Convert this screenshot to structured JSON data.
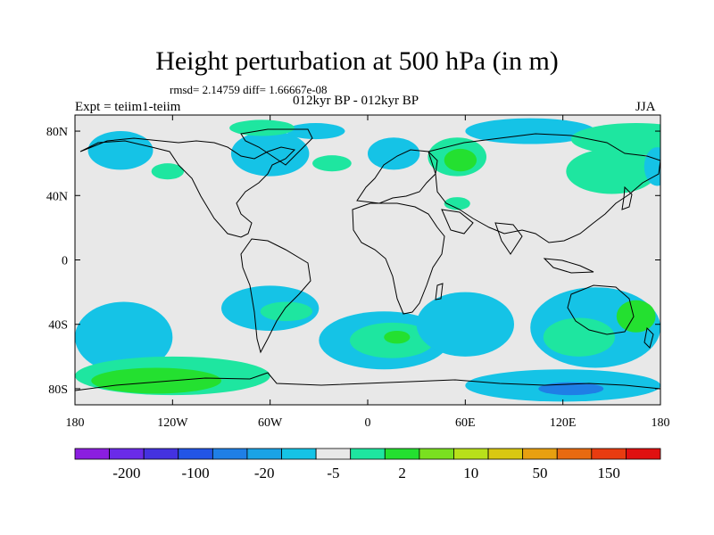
{
  "title": "Height perturbation at 500 hPa (in m)",
  "stats_line": "rmsd= 2.14759 diff= 1.66667e-08",
  "experiment_label": "Expt = teiim1-teiim",
  "period_label": "012kyr BP - 012kyr BP",
  "season_label": "JJA",
  "map": {
    "projection": "cylindrical-equidistant",
    "lon_range": [
      -180,
      180
    ],
    "lat_range": [
      -90,
      90
    ],
    "background_color": "#e8e8e8",
    "x_ticks": [
      {
        "lon": -180,
        "label": "180"
      },
      {
        "lon": -120,
        "label": "120W"
      },
      {
        "lon": -60,
        "label": "60W"
      },
      {
        "lon": 0,
        "label": "0"
      },
      {
        "lon": 60,
        "label": "60E"
      },
      {
        "lon": 120,
        "label": "120E"
      },
      {
        "lon": 180,
        "label": "180"
      }
    ],
    "y_ticks": [
      {
        "lat": 80,
        "label": "80N"
      },
      {
        "lat": 40,
        "label": "40N"
      },
      {
        "lat": 0,
        "label": "0"
      },
      {
        "lat": -40,
        "label": "40S"
      },
      {
        "lat": -80,
        "label": "80S"
      }
    ]
  },
  "colorbar": {
    "colors": [
      "#8b1ee0",
      "#6a2be8",
      "#4432e0",
      "#2255e6",
      "#1f7fe6",
      "#1aa3e6",
      "#15c3e6",
      "#e8e8e8",
      "#1ee6a0",
      "#24e030",
      "#7ae020",
      "#b8e01a",
      "#d9c812",
      "#e8a010",
      "#e86a10",
      "#e83c10",
      "#e01010"
    ],
    "labels": [
      {
        "after_box": 1,
        "text": "-200"
      },
      {
        "after_box": 3,
        "text": "-100"
      },
      {
        "after_box": 5,
        "text": "-20"
      },
      {
        "after_box": 7,
        "text": "-5"
      },
      {
        "after_box": 9,
        "text": "2"
      },
      {
        "after_box": 11,
        "text": "10"
      },
      {
        "after_box": 13,
        "text": "50"
      },
      {
        "after_box": 15,
        "text": "150"
      }
    ]
  },
  "anomaly_regions": [
    {
      "sign": "negative",
      "color": "#15c3e6",
      "center": [
        -152,
        68
      ],
      "radius": [
        20,
        12
      ]
    },
    {
      "sign": "negative",
      "color": "#15c3e6",
      "center": [
        -60,
        66
      ],
      "radius": [
        24,
        14
      ]
    },
    {
      "sign": "negative",
      "color": "#15c3e6",
      "center": [
        -32,
        80
      ],
      "radius": [
        18,
        5
      ]
    },
    {
      "sign": "positive",
      "color": "#1ee6a0",
      "center": [
        -65,
        82
      ],
      "radius": [
        20,
        5
      ]
    },
    {
      "sign": "positive",
      "color": "#1ee6a0",
      "center": [
        -123,
        55
      ],
      "radius": [
        10,
        5
      ]
    },
    {
      "sign": "positive",
      "color": "#1ee6a0",
      "center": [
        -22,
        60
      ],
      "radius": [
        12,
        5
      ]
    },
    {
      "sign": "negative",
      "color": "#15c3e6",
      "center": [
        16,
        66
      ],
      "radius": [
        16,
        10
      ]
    },
    {
      "sign": "positive",
      "color": "#1ee6a0",
      "center": [
        55,
        64
      ],
      "radius": [
        18,
        12
      ]
    },
    {
      "sign": "positive",
      "color": "#24e030",
      "center": [
        57,
        62
      ],
      "radius": [
        10,
        7
      ]
    },
    {
      "sign": "negative",
      "color": "#15c3e6",
      "center": [
        100,
        80
      ],
      "radius": [
        40,
        8
      ]
    },
    {
      "sign": "positive",
      "color": "#1ee6a0",
      "center": [
        165,
        75
      ],
      "radius": [
        40,
        10
      ]
    },
    {
      "sign": "positive",
      "color": "#1ee6a0",
      "center": [
        150,
        55
      ],
      "radius": [
        28,
        14
      ]
    },
    {
      "sign": "negative",
      "color": "#15c3e6",
      "center": [
        178,
        58
      ],
      "radius": [
        8,
        12
      ]
    },
    {
      "sign": "positive",
      "color": "#1ee6a0",
      "center": [
        55,
        35
      ],
      "radius": [
        8,
        4
      ]
    },
    {
      "sign": "negative",
      "color": "#15c3e6",
      "center": [
        -60,
        -30
      ],
      "radius": [
        30,
        14
      ]
    },
    {
      "sign": "positive",
      "color": "#1ee6a0",
      "center": [
        -50,
        -32
      ],
      "radius": [
        16,
        6
      ]
    },
    {
      "sign": "negative",
      "color": "#15c3e6",
      "center": [
        -150,
        -48
      ],
      "radius": [
        30,
        22
      ]
    },
    {
      "sign": "negative",
      "color": "#15c3e6",
      "center": [
        10,
        -50
      ],
      "radius": [
        40,
        18
      ]
    },
    {
      "sign": "positive",
      "color": "#1ee6a0",
      "center": [
        15,
        -50
      ],
      "radius": [
        26,
        11
      ]
    },
    {
      "sign": "positive",
      "color": "#24e030",
      "center": [
        18,
        -48
      ],
      "radius": [
        8,
        4
      ]
    },
    {
      "sign": "negative",
      "color": "#15c3e6",
      "center": [
        60,
        -40
      ],
      "radius": [
        30,
        20
      ]
    },
    {
      "sign": "negative",
      "color": "#15c3e6",
      "center": [
        140,
        -42
      ],
      "radius": [
        40,
        25
      ]
    },
    {
      "sign": "positive",
      "color": "#1ee6a0",
      "center": [
        130,
        -48
      ],
      "radius": [
        22,
        12
      ]
    },
    {
      "sign": "positive",
      "color": "#24e030",
      "center": [
        165,
        -35
      ],
      "radius": [
        12,
        10
      ]
    },
    {
      "sign": "positive",
      "color": "#1ee6a0",
      "center": [
        -120,
        -72
      ],
      "radius": [
        60,
        12
      ]
    },
    {
      "sign": "positive",
      "color": "#24e030",
      "center": [
        -130,
        -75
      ],
      "radius": [
        40,
        8
      ]
    },
    {
      "sign": "negative",
      "color": "#15c3e6",
      "center": [
        120,
        -78
      ],
      "radius": [
        60,
        10
      ]
    },
    {
      "sign": "negative",
      "color": "#1f7fe6",
      "center": [
        125,
        -80
      ],
      "radius": [
        20,
        4
      ]
    }
  ]
}
